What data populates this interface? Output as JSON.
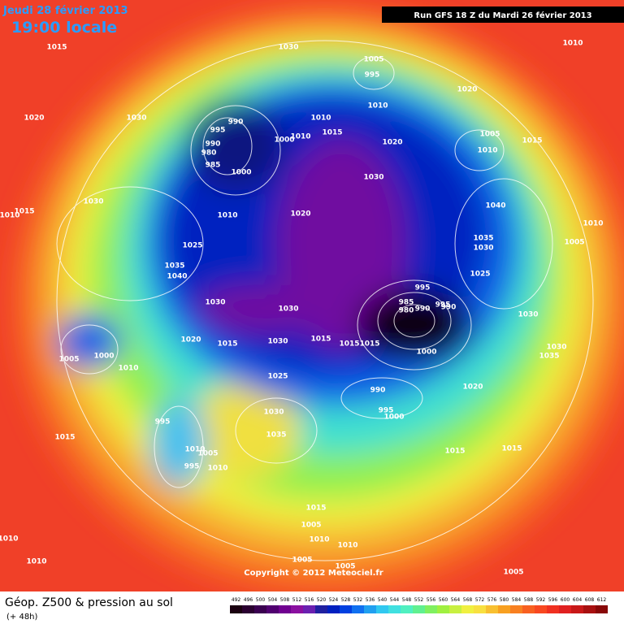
{
  "header": {
    "date": "Jeudi 28 février 2013",
    "time": "19:00 locale",
    "run": "Run GFS 18 Z du Mardi 26 février 2013"
  },
  "footer": {
    "title": "Géop. Z500 & pression au sol",
    "lead": "(+ 48h)",
    "copyright": "Copyright © 2012 Meteociel.fr"
  },
  "colorbar": {
    "ticks": [
      492,
      496,
      500,
      504,
      508,
      512,
      516,
      520,
      524,
      528,
      532,
      536,
      540,
      544,
      548,
      552,
      556,
      560,
      564,
      568,
      572,
      576,
      580,
      584,
      588,
      592,
      596,
      600,
      604,
      608,
      612
    ],
    "colors": [
      "#1a0010",
      "#2a0030",
      "#3a0050",
      "#500070",
      "#700090",
      "#8a10a0",
      "#6a20b0",
      "#2020a0",
      "#0020c0",
      "#0040e0",
      "#1070f0",
      "#20a0f0",
      "#30c8f0",
      "#40e0e0",
      "#50f0c0",
      "#60f090",
      "#80f060",
      "#a0f040",
      "#c8f040",
      "#f0f040",
      "#f8e040",
      "#f8c030",
      "#f8a020",
      "#f88020",
      "#f86020",
      "#f84820",
      "#f03020",
      "#e02020",
      "#c81818",
      "#a81010",
      "#880808"
    ]
  },
  "isobar_labels": [
    "1015",
    "1030",
    "1005",
    "995",
    "1010",
    "1020",
    "1030",
    "990",
    "995",
    "990",
    "980",
    "985",
    "1000",
    "1010",
    "1000",
    "1010",
    "1015",
    "1010",
    "1020",
    "1005",
    "1010",
    "1015",
    "1020",
    "1030",
    "1030",
    "1015",
    "1010",
    "1010",
    "1020",
    "1040",
    "1010",
    "1035",
    "1030",
    "1005",
    "1025",
    "1035",
    "1040",
    "1025",
    "995",
    "1030",
    "1030",
    "985",
    "980",
    "990",
    "995",
    "990",
    "1030",
    "1020",
    "1015",
    "1030",
    "1015",
    "1015",
    "1015",
    "1000",
    "1030",
    "1035",
    "1005",
    "1000",
    "1010",
    "1025",
    "990",
    "1020",
    "995",
    "1000",
    "1030",
    "995",
    "1035",
    "1015",
    "1010",
    "1005",
    "995",
    "1010",
    "1015",
    "1015",
    "1015",
    "1005",
    "1010",
    "1010",
    "1010",
    "1010",
    "1005",
    "1005",
    "1005"
  ]
}
